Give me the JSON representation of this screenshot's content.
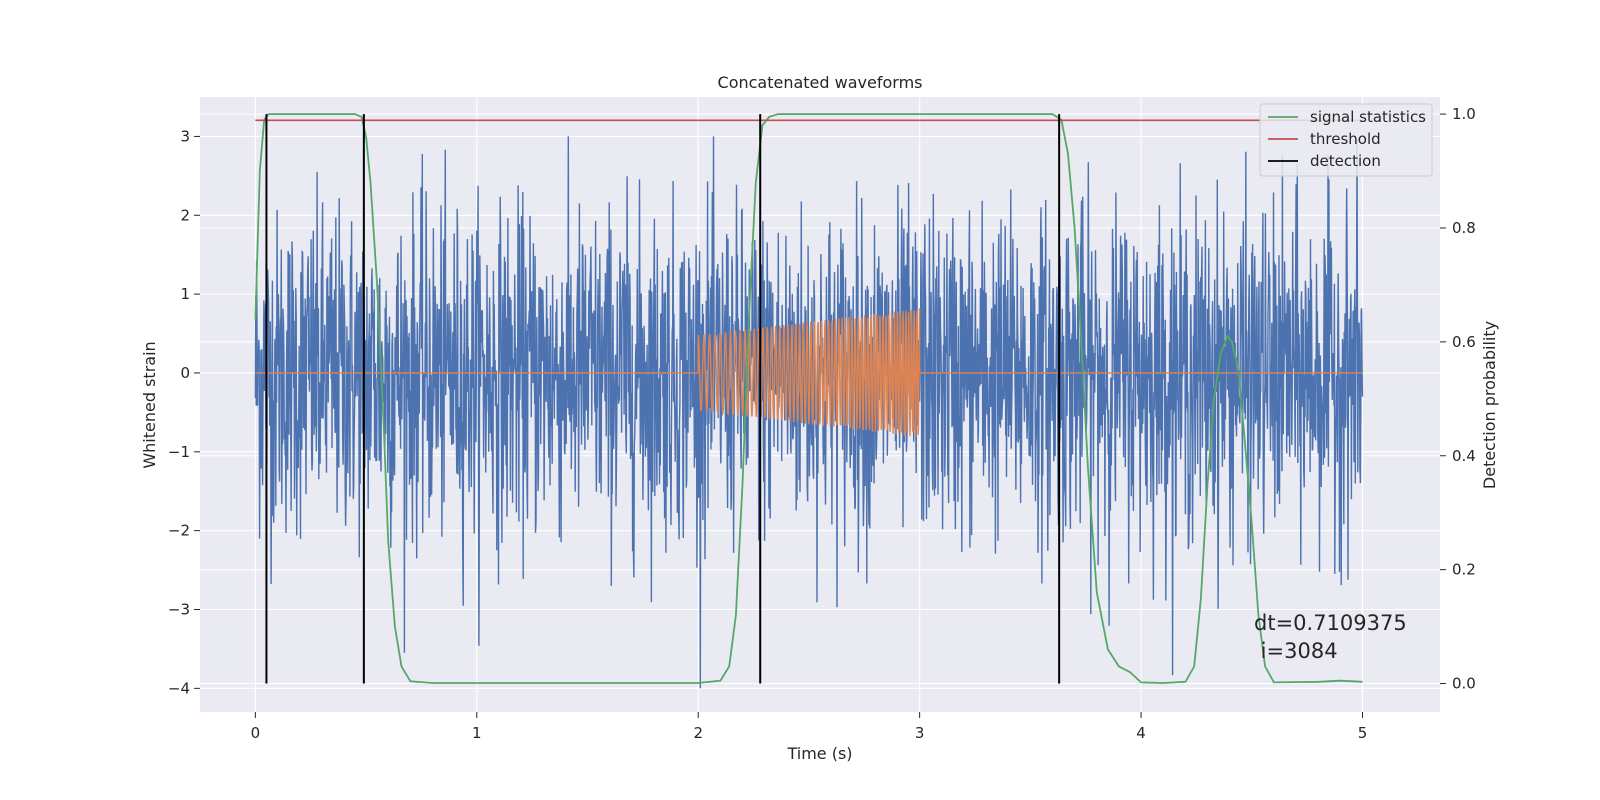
{
  "chart_data": {
    "type": "line",
    "title": "Concatenated waveforms",
    "xlabel": "Time (s)",
    "ylabel": "Whitened strain",
    "ylabel_right": "Detection probability",
    "xlim": [
      -0.25,
      5.35
    ],
    "ylim": [
      -4.3,
      3.5
    ],
    "ylim_right": [
      -0.05,
      1.03
    ],
    "xticks": [
      0,
      1,
      2,
      3,
      4,
      5
    ],
    "yticks": [
      -4,
      -3,
      -2,
      -1,
      0,
      1,
      2,
      3
    ],
    "yticks_right": [
      0.0,
      0.2,
      0.4,
      0.6,
      0.8,
      1.0
    ],
    "xtick_labels": [
      "0",
      "1",
      "2",
      "3",
      "4",
      "5"
    ],
    "ytick_labels": [
      "−4",
      "−3",
      "−2",
      "−1",
      "0",
      "1",
      "2",
      "3"
    ],
    "ytick_labels_right": [
      "0.0",
      "0.2",
      "0.4",
      "0.6",
      "0.8",
      "1.0"
    ],
    "grid": true,
    "legend_position": "top-right",
    "legend": [
      {
        "name": "signal statistics",
        "color": "#55a868"
      },
      {
        "name": "threshold",
        "color": "#c44e52"
      },
      {
        "name": "detection",
        "color": "#000000"
      }
    ],
    "series": [
      {
        "kind": "noise",
        "color": "#4c72b0",
        "x_range": [
          0,
          5
        ],
        "amplitude_typical": 1.2,
        "amplitude_peak": 3.0,
        "min": -4.0,
        "max": 3.0,
        "axis": "left"
      },
      {
        "kind": "chirp",
        "color": "#dd8452",
        "x_range": [
          2,
          3
        ],
        "baseline": 0,
        "amplitude_start": 0.48,
        "amplitude_end": 0.82,
        "axis": "left"
      },
      {
        "name": "signal statistics",
        "color": "#55a868",
        "axis": "right",
        "x": [
          0,
          0.02,
          0.04,
          0.06,
          0.08,
          0.1,
          0.45,
          0.48,
          0.5,
          0.52,
          0.55,
          0.58,
          0.6,
          0.63,
          0.66,
          0.7,
          0.8,
          2.0,
          2.1,
          2.14,
          2.17,
          2.2,
          2.23,
          2.26,
          2.29,
          2.32,
          2.36,
          2.45,
          3.6,
          3.64,
          3.67,
          3.7,
          3.73,
          3.76,
          3.8,
          3.85,
          3.9,
          3.95,
          4.0,
          4.1,
          4.2,
          4.24,
          4.27,
          4.3,
          4.33,
          4.36,
          4.39,
          4.41,
          4.44,
          4.47,
          4.5,
          4.53,
          4.56,
          4.6,
          4.8,
          4.9,
          5.0
        ],
        "y": [
          0.64,
          0.9,
          0.99,
          1.0,
          1.0,
          1.0,
          1.0,
          0.995,
          0.96,
          0.88,
          0.7,
          0.45,
          0.25,
          0.1,
          0.03,
          0.004,
          0.001,
          0.001,
          0.005,
          0.03,
          0.12,
          0.35,
          0.65,
          0.88,
          0.98,
          0.995,
          1.0,
          1.0,
          1.0,
          0.99,
          0.93,
          0.8,
          0.6,
          0.38,
          0.16,
          0.06,
          0.03,
          0.02,
          0.002,
          0.001,
          0.003,
          0.03,
          0.15,
          0.35,
          0.5,
          0.58,
          0.61,
          0.6,
          0.55,
          0.42,
          0.28,
          0.12,
          0.03,
          0.002,
          0.003,
          0.005,
          0.003
        ]
      },
      {
        "name": "threshold",
        "color": "#c44e52",
        "axis": "right",
        "x": [
          0,
          5
        ],
        "y": [
          0.989,
          0.989
        ]
      }
    ],
    "detections": {
      "name": "detection",
      "color": "#000000",
      "x": [
        0.05,
        0.49,
        2.28,
        3.63
      ],
      "y_range": [
        0.0,
        1.0
      ]
    },
    "annotation": {
      "line1": "dt=0.7109375",
      "line2": " i=3084"
    }
  }
}
